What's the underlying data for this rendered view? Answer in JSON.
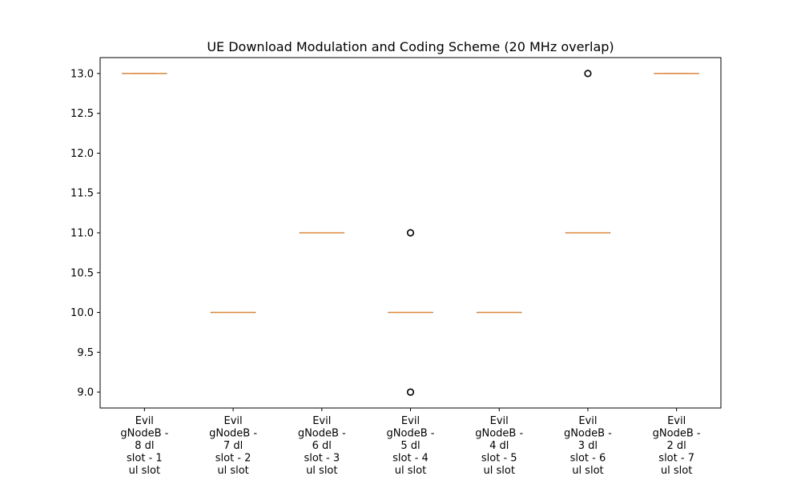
{
  "chart_data": {
    "type": "box",
    "title": "UE Download Modulation and Coding Scheme (20 MHz overlap)",
    "xlabel": "",
    "ylabel": "",
    "ylim": [
      8.8,
      13.2
    ],
    "yticks": [
      9.0,
      9.5,
      10.0,
      10.5,
      11.0,
      11.5,
      12.0,
      12.5,
      13.0
    ],
    "ytick_labels": [
      "9.0",
      "9.5",
      "10.0",
      "10.5",
      "11.0",
      "11.5",
      "12.0",
      "12.5",
      "13.0"
    ],
    "grid": false,
    "colors": {
      "median": "#e08a3c",
      "box": "#000000",
      "flier": "#000000"
    },
    "categories": [
      [
        "Evil",
        "gNodeB -",
        "8 dl",
        "slot - 1",
        "ul slot"
      ],
      [
        "Evil",
        "gNodeB -",
        "7 dl",
        "slot - 2",
        "ul slot"
      ],
      [
        "Evil",
        "gNodeB -",
        "6 dl",
        "slot - 3",
        "ul slot"
      ],
      [
        "Evil",
        "gNodeB -",
        "5 dl",
        "slot - 4",
        "ul slot"
      ],
      [
        "Evil",
        "gNodeB -",
        "4 dl",
        "slot - 5",
        "ul slot"
      ],
      [
        "Evil",
        "gNodeB -",
        "3 dl",
        "slot - 6",
        "ul slot"
      ],
      [
        "Evil",
        "gNodeB -",
        "2 dl",
        "slot - 7",
        "ul slot"
      ]
    ],
    "boxes": [
      {
        "median": 13.0,
        "q1": 13.0,
        "q3": 13.0,
        "whisker_low": 13.0,
        "whisker_high": 13.0,
        "outliers": []
      },
      {
        "median": 10.0,
        "q1": 10.0,
        "q3": 10.0,
        "whisker_low": 10.0,
        "whisker_high": 10.0,
        "outliers": []
      },
      {
        "median": 11.0,
        "q1": 11.0,
        "q3": 11.0,
        "whisker_low": 11.0,
        "whisker_high": 11.0,
        "outliers": []
      },
      {
        "median": 10.0,
        "q1": 10.0,
        "q3": 10.0,
        "whisker_low": 10.0,
        "whisker_high": 10.0,
        "outliers": [
          11.0,
          9.0
        ]
      },
      {
        "median": 10.0,
        "q1": 10.0,
        "q3": 10.0,
        "whisker_low": 10.0,
        "whisker_high": 10.0,
        "outliers": []
      },
      {
        "median": 11.0,
        "q1": 11.0,
        "q3": 11.0,
        "whisker_low": 11.0,
        "whisker_high": 11.0,
        "outliers": [
          13.0
        ]
      },
      {
        "median": 13.0,
        "q1": 13.0,
        "q3": 13.0,
        "whisker_low": 13.0,
        "whisker_high": 13.0,
        "outliers": []
      }
    ]
  }
}
